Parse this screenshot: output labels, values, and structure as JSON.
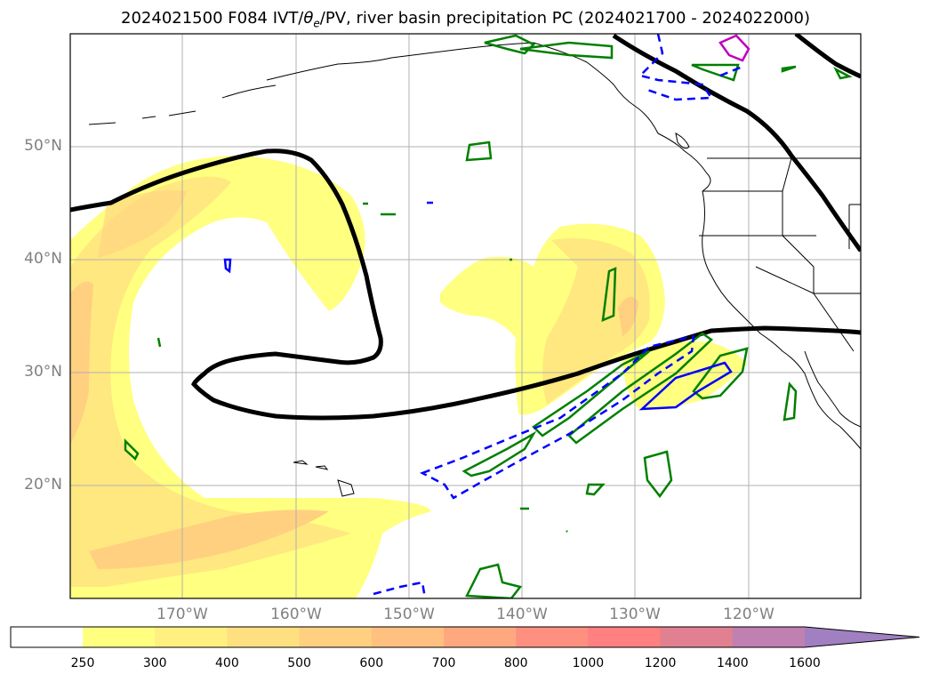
{
  "title": {
    "prefix": "2024021500 F084 IVT/",
    "theta_symbol": "θ",
    "theta_sub": "e",
    "suffix": "/PV, river basin precipitation PC (2024021700 - 2024022000)"
  },
  "map": {
    "lat_labels": [
      "50°N",
      "40°N",
      "30°N",
      "20°N"
    ],
    "lon_labels": [
      "170°W",
      "160°W",
      "150°W",
      "140°W",
      "130°W",
      "120°W"
    ],
    "gridlines": true
  },
  "colorbar": {
    "labels": [
      "250",
      "300",
      "400",
      "500",
      "600",
      "700",
      "800",
      "1000",
      "1200",
      "1400",
      "1600"
    ],
    "colors": [
      "#ffff80",
      "#fff080",
      "#ffe080",
      "#ffd080",
      "#ffc080",
      "#ffa880",
      "#ff9080",
      "#ff8080",
      "#e08090",
      "#c080b0",
      "#a080c0"
    ],
    "extend": "max"
  },
  "colors": {
    "ivt_light": "#ffff80",
    "ivt_mid": "#ffe880",
    "ivt_dark": "#ffd080",
    "pv_contour": "#000000",
    "green_contour": "#008000",
    "blue_contour": "#0000ff",
    "magenta_contour": "#c000c0",
    "grid": "#b0b0b0"
  }
}
